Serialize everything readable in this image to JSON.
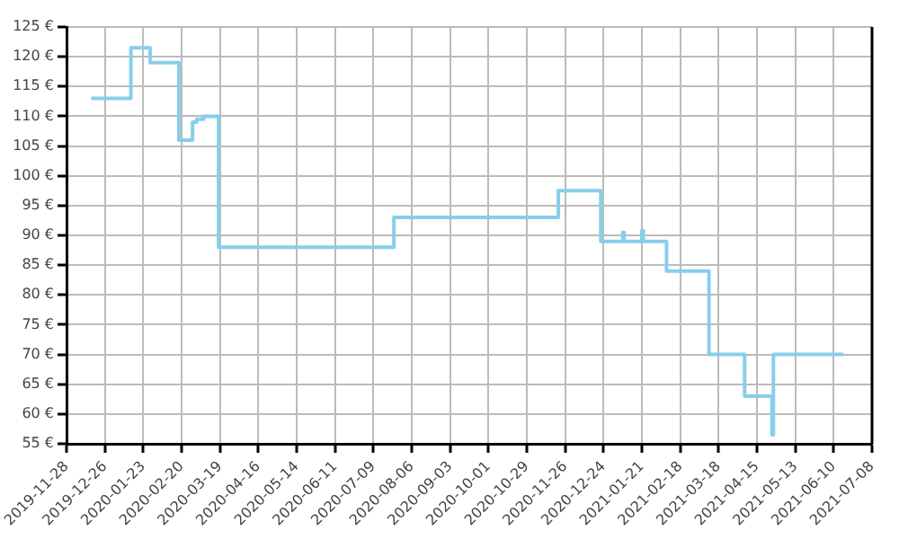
{
  "chart_data": {
    "type": "step",
    "x": [
      "2019-12-16",
      "2020-01-14",
      "2020-01-28",
      "2020-02-18",
      "2020-02-28",
      "2020-03-02",
      "2020-03-07",
      "2020-03-18",
      "2020-07-24",
      "2020-11-21",
      "2020-12-22",
      "2021-01-07",
      "2021-01-08",
      "2021-01-21",
      "2021-01-22",
      "2021-02-08",
      "2021-03-11",
      "2021-04-06",
      "2021-04-26",
      "2021-04-27",
      "2021-06-17"
    ],
    "series": [
      {
        "color": "#87ceeb",
        "values": [
          113,
          121.5,
          119,
          106,
          109,
          109.5,
          110,
          88,
          93,
          97.5,
          89,
          90.5,
          89,
          90.8,
          89,
          84,
          70,
          63,
          56.5,
          70,
          70
        ]
      }
    ],
    "xlim": [
      "2019-11-28",
      "2021-07-08"
    ],
    "xticks": [
      "2019-11-28",
      "2019-12-26",
      "2020-01-23",
      "2020-02-20",
      "2020-03-19",
      "2020-04-16",
      "2020-05-14",
      "2020-06-11",
      "2020-07-09",
      "2020-08-06",
      "2020-09-03",
      "2020-10-01",
      "2020-10-29",
      "2020-11-26",
      "2020-12-24",
      "2021-01-21",
      "2021-02-18",
      "2021-03-18",
      "2021-04-15",
      "2021-05-13",
      "2021-06-10",
      "2021-07-08"
    ],
    "ylim": [
      55,
      125
    ],
    "yticks": [
      {
        "value": 55,
        "label": "55 €"
      },
      {
        "value": 60,
        "label": "60 €"
      },
      {
        "value": 65,
        "label": "65 €"
      },
      {
        "value": 70,
        "label": "70 €"
      },
      {
        "value": 75,
        "label": "75 €"
      },
      {
        "value": 80,
        "label": "80 €"
      },
      {
        "value": 85,
        "label": "85 €"
      },
      {
        "value": 90,
        "label": "90 €"
      },
      {
        "value": 95,
        "label": "95 €"
      },
      {
        "value": 100,
        "label": "100 €"
      },
      {
        "value": 105,
        "label": "105 €"
      },
      {
        "value": 110,
        "label": "110 €"
      },
      {
        "value": 115,
        "label": "115 €"
      },
      {
        "value": 120,
        "label": "120 €"
      },
      {
        "value": 125,
        "label": "125 €"
      }
    ],
    "grid": true,
    "legend": false,
    "marker": "none",
    "line_style": "solid"
  }
}
